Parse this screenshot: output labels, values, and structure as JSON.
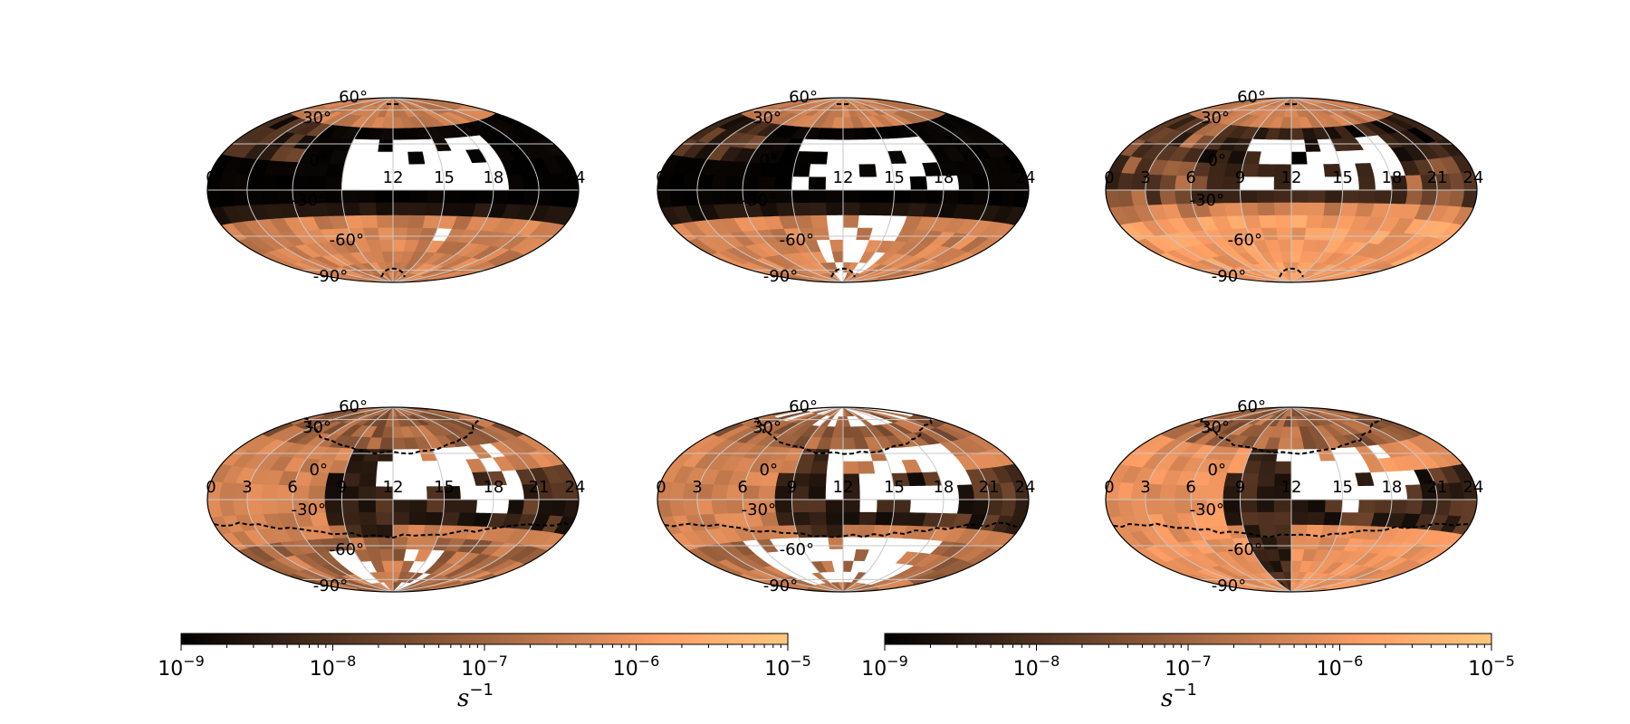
{
  "figure": {
    "title": ""
  },
  "chart_data": [
    {
      "type": "heatmap",
      "projection": "hammer-aitoff",
      "panel": "top-left",
      "grid": true,
      "lat_ticks": [
        "60°",
        "30°",
        "0°",
        "-30°",
        "-60°",
        "-90°"
      ],
      "lon_ticks": [
        "0",
        "3",
        "6",
        "9",
        "12",
        "15",
        "18",
        "21",
        "24"
      ],
      "lon_ticks_visible": [
        "0",
        "12",
        "15",
        "18",
        "24"
      ],
      "colormap": "copper",
      "norm": "log",
      "dashed_contour": "southern polar"
    },
    {
      "type": "heatmap",
      "projection": "hammer-aitoff",
      "panel": "top-middle",
      "grid": true,
      "lat_ticks": [
        "60°",
        "30°",
        "0°",
        "-30°",
        "-60°",
        "-90°"
      ],
      "lon_ticks": [
        "0",
        "3",
        "6",
        "9",
        "12",
        "15",
        "18",
        "21",
        "24"
      ],
      "lon_ticks_visible": [
        "0",
        "12",
        "15",
        "18",
        "24"
      ],
      "colormap": "copper",
      "norm": "log",
      "dashed_contour": "southern polar"
    },
    {
      "type": "heatmap",
      "projection": "hammer-aitoff",
      "panel": "top-right",
      "grid": true,
      "lat_ticks": [
        "60°",
        "30°",
        "0°",
        "-30°",
        "-60°",
        "-90°"
      ],
      "lon_ticks": [
        "0",
        "3",
        "6",
        "9",
        "12",
        "15",
        "18",
        "21",
        "24"
      ],
      "lon_ticks_visible": [
        "0",
        "3",
        "6",
        "9",
        "12",
        "15",
        "18",
        "21",
        "24"
      ],
      "colormap": "copper",
      "norm": "log",
      "dashed_contour": "southern polar"
    },
    {
      "type": "heatmap",
      "projection": "hammer-aitoff",
      "panel": "bottom-left",
      "grid": true,
      "lat_ticks": [
        "60°",
        "30°",
        "0°",
        "-30°",
        "-60°",
        "-90°"
      ],
      "lon_ticks": [
        "0",
        "3",
        "6",
        "9",
        "12",
        "15",
        "18",
        "21",
        "24"
      ],
      "lon_ticks_visible": [
        "0",
        "3",
        "6",
        "9",
        "12",
        "15",
        "18",
        "21",
        "24"
      ],
      "colormap": "copper",
      "norm": "log",
      "dashed_contour": "two wavy bands"
    },
    {
      "type": "heatmap",
      "projection": "hammer-aitoff",
      "panel": "bottom-middle",
      "grid": true,
      "lat_ticks": [
        "60°",
        "30°",
        "0°",
        "-30°",
        "-60°",
        "-90°"
      ],
      "lon_ticks": [
        "0",
        "3",
        "6",
        "9",
        "12",
        "15",
        "18",
        "21",
        "24"
      ],
      "lon_ticks_visible": [
        "0",
        "3",
        "6",
        "9",
        "12",
        "15",
        "18",
        "21",
        "24"
      ],
      "colormap": "copper",
      "norm": "log",
      "dashed_contour": "two wavy bands"
    },
    {
      "type": "heatmap",
      "projection": "hammer-aitoff",
      "panel": "bottom-right",
      "grid": true,
      "lat_ticks": [
        "60°",
        "30°",
        "0°",
        "-30°",
        "-60°",
        "-90°"
      ],
      "lon_ticks": [
        "0",
        "3",
        "6",
        "9",
        "12",
        "15",
        "18",
        "21",
        "24"
      ],
      "lon_ticks_visible": [
        "0",
        "3",
        "6",
        "9",
        "12",
        "15",
        "18",
        "21",
        "24"
      ],
      "colormap": "copper",
      "norm": "log",
      "dashed_contour": "two wavy bands"
    }
  ],
  "colorbars": [
    {
      "label": "s",
      "label_exponent": "−1",
      "min": 1e-09,
      "max": 1e-05,
      "ticks": [
        {
          "mantissa": "10",
          "exp": "−9"
        },
        {
          "mantissa": "10",
          "exp": "−8"
        },
        {
          "mantissa": "10",
          "exp": "−7"
        },
        {
          "mantissa": "10",
          "exp": "−6"
        },
        {
          "mantissa": "10",
          "exp": "−5"
        }
      ]
    },
    {
      "label": "s",
      "label_exponent": "−1",
      "min": 1e-09,
      "max": 1e-05,
      "ticks": [
        {
          "mantissa": "10",
          "exp": "−9"
        },
        {
          "mantissa": "10",
          "exp": "−8"
        },
        {
          "mantissa": "10",
          "exp": "−7"
        },
        {
          "mantissa": "10",
          "exp": "−6"
        },
        {
          "mantissa": "10",
          "exp": "−5"
        }
      ]
    }
  ],
  "colors": {
    "masked": "#ffffff",
    "grid": "#c8c8c8",
    "outline": "#000000",
    "copper_low": "#000000",
    "copper_high": "#ffc77f"
  }
}
